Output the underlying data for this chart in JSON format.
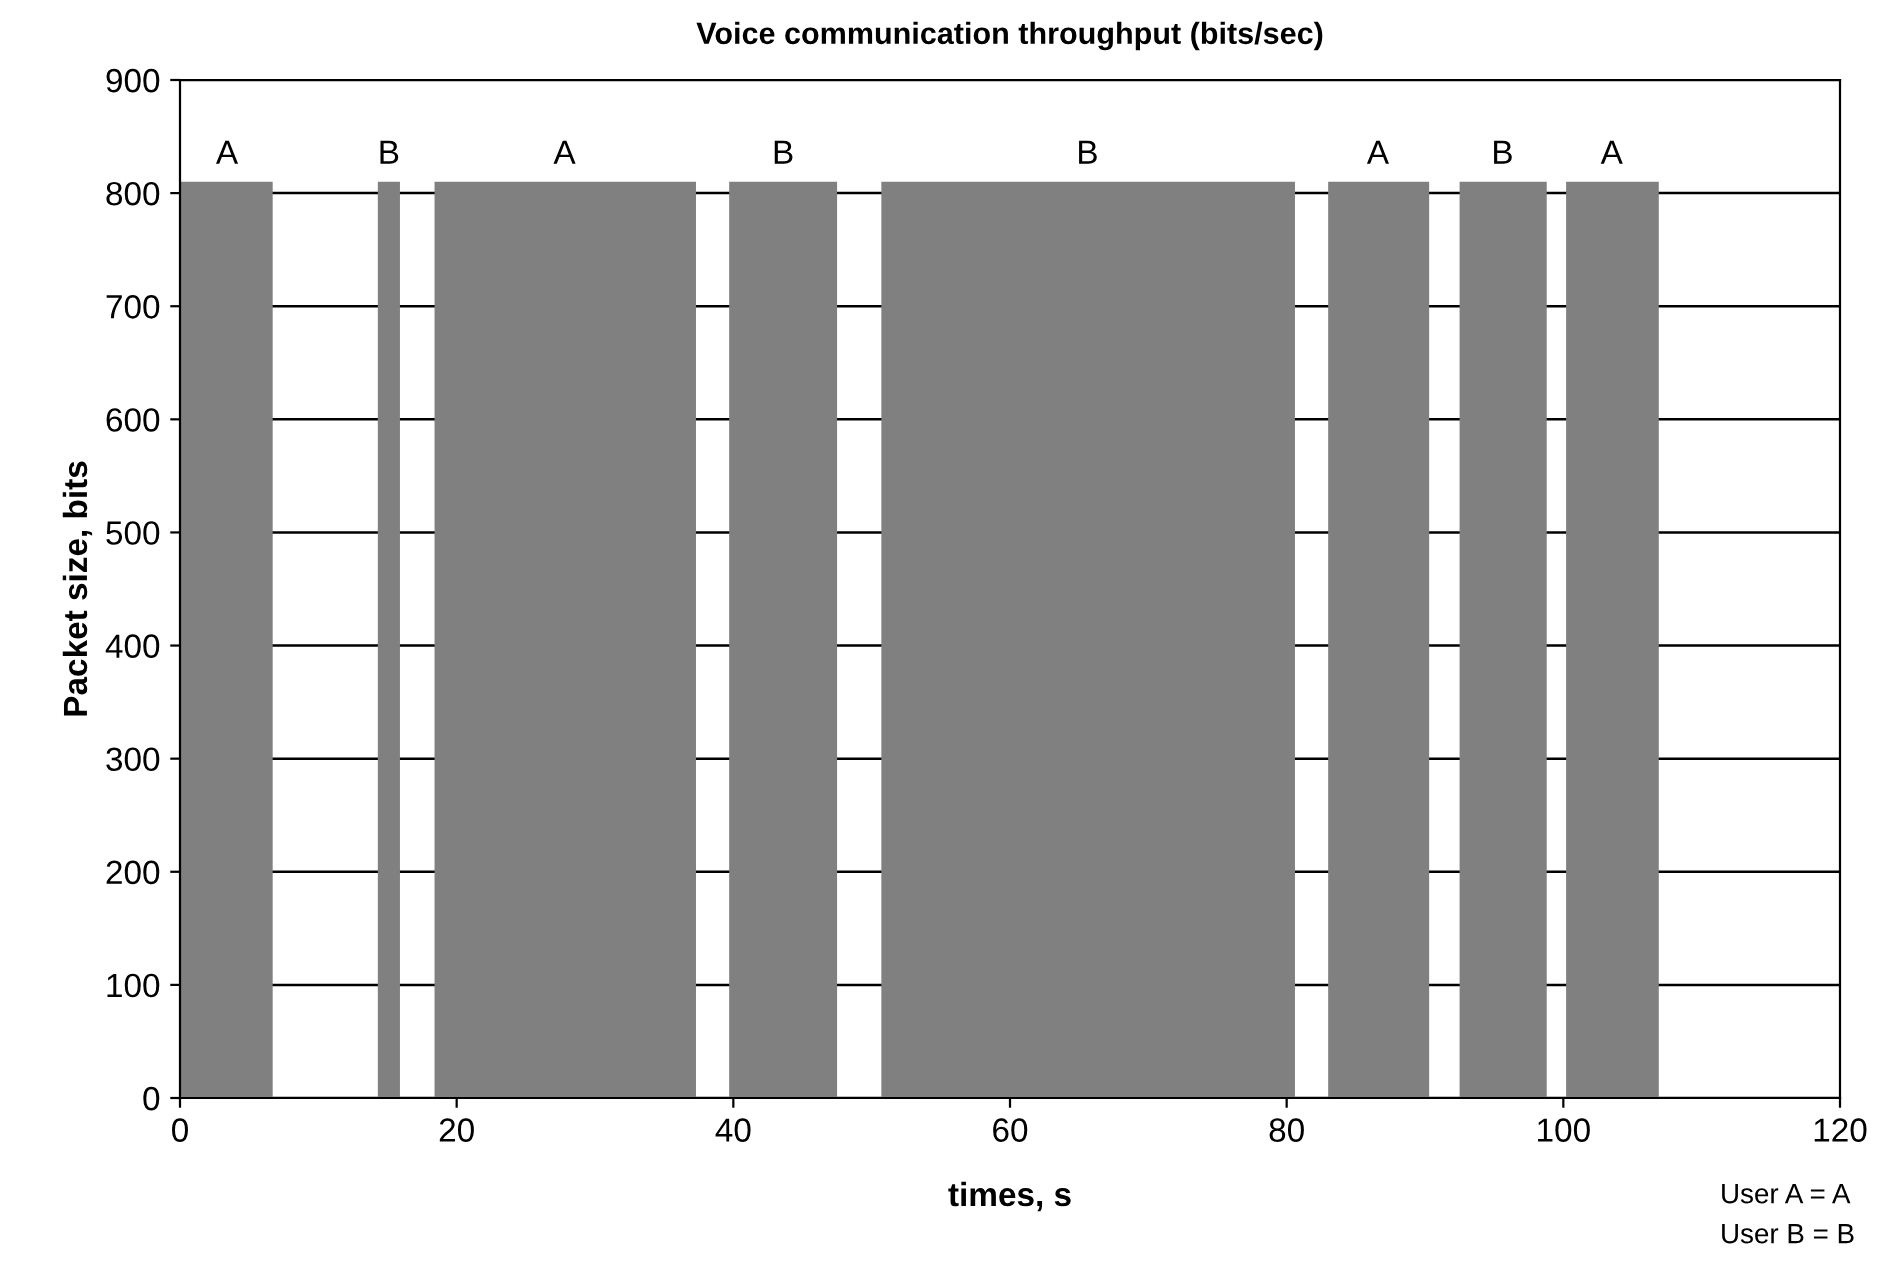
{
  "chart_data": {
    "type": "area",
    "title": "Voice communication throughput (bits/sec)",
    "xlabel": "times, s",
    "ylabel": "Packet size, bits",
    "series": [
      {
        "color": "#808080",
        "x": [
          0,
          6.7,
          6.7,
          14.3,
          14.3,
          15.9,
          15.9,
          18.4,
          18.4,
          37.3,
          37.3,
          39.7,
          39.7,
          47.5,
          47.5,
          50.7,
          50.7,
          80.6,
          80.6,
          83.0,
          83.0,
          90.3,
          90.3,
          92.5,
          92.5,
          98.8,
          98.8,
          100.2,
          100.2,
          106.9,
          106.9,
          120
        ],
        "values": [
          810,
          810,
          0,
          0,
          810,
          810,
          0,
          0,
          810,
          810,
          0,
          0,
          810,
          810,
          0,
          0,
          810,
          810,
          0,
          0,
          810,
          810,
          0,
          0,
          810,
          810,
          0,
          0,
          810,
          810,
          0,
          0
        ]
      }
    ],
    "xlim": [
      0,
      120
    ],
    "xticks": [
      0,
      20,
      40,
      60,
      80,
      100,
      120
    ],
    "ylim": [
      0,
      900
    ],
    "yticks": [
      0,
      100,
      200,
      300,
      400,
      500,
      600,
      700,
      800,
      900
    ],
    "grid": "y",
    "legend": false,
    "annotations": [
      {
        "text": "A",
        "x": 3.4,
        "y": 810
      },
      {
        "text": "B",
        "x": 15.1,
        "y": 810
      },
      {
        "text": "A",
        "x": 27.8,
        "y": 810
      },
      {
        "text": "B",
        "x": 43.6,
        "y": 810
      },
      {
        "text": "B",
        "x": 65.6,
        "y": 810
      },
      {
        "text": "A",
        "x": 86.6,
        "y": 810
      },
      {
        "text": "B",
        "x": 95.6,
        "y": 810
      },
      {
        "text": "A",
        "x": 103.5,
        "y": 810
      },
      "User A = A",
      "User B = B"
    ]
  }
}
